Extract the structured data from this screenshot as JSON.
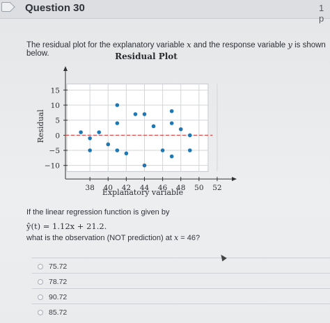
{
  "header": {
    "title": "Question 30",
    "points": "1 p"
  },
  "prompt_text": "The residual plot for the explanatory variable x and the response variable y is shown below.",
  "chart_data": {
    "type": "scatter",
    "title": "Residual Plot",
    "xlabel": "Explanatory variable",
    "ylabel": "Residual",
    "xlim": [
      35,
      53
    ],
    "ylim": [
      -14,
      19
    ],
    "x_ticks": [
      38,
      40,
      42,
      44,
      46,
      48,
      50,
      52
    ],
    "y_ticks": [
      15,
      10,
      5,
      0,
      -5,
      -10
    ],
    "grid": true,
    "reference_line": {
      "y": 0,
      "style": "dashed",
      "color": "#e05a5a"
    },
    "point_color": "#1f77b4",
    "points": [
      {
        "x": 37,
        "y": 1
      },
      {
        "x": 38,
        "y": -1
      },
      {
        "x": 38,
        "y": -5
      },
      {
        "x": 39,
        "y": 1
      },
      {
        "x": 40,
        "y": -3
      },
      {
        "x": 41,
        "y": 10
      },
      {
        "x": 41,
        "y": 4
      },
      {
        "x": 41,
        "y": -5
      },
      {
        "x": 42,
        "y": -6
      },
      {
        "x": 43,
        "y": 7
      },
      {
        "x": 44,
        "y": 7
      },
      {
        "x": 44,
        "y": -10
      },
      {
        "x": 45,
        "y": 3
      },
      {
        "x": 46,
        "y": -5
      },
      {
        "x": 47,
        "y": 8
      },
      {
        "x": 47,
        "y": 4
      },
      {
        "x": 47,
        "y": -7
      },
      {
        "x": 48,
        "y": 2
      },
      {
        "x": 49,
        "y": 0
      },
      {
        "x": 49,
        "y": -5
      }
    ]
  },
  "question_intro": "If the linear regression function is given by",
  "formula": "ŷ(t) = 1.12x + 21.2.",
  "question": "what is the observation (NOT prediction) at x = 46?",
  "options": [
    {
      "label": "75.72"
    },
    {
      "label": "78.72"
    },
    {
      "label": "90.72"
    },
    {
      "label": "85.72"
    }
  ]
}
